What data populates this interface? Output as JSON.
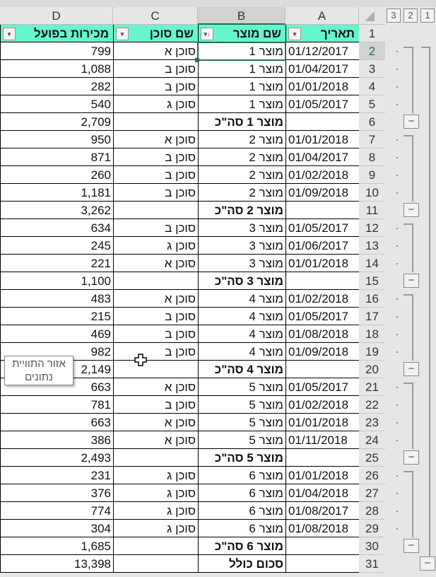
{
  "columns": [
    "D",
    "C",
    "B",
    "A"
  ],
  "outline_levels": [
    "3",
    "2",
    "1"
  ],
  "headers": {
    "A": "תאריך",
    "B": "שם מוצר",
    "C": "שם סוכן",
    "D": "מכירות בפועל"
  },
  "rows": [
    [
      "01/12/2017",
      "מוצר 1",
      "סוכן א",
      "799",
      false
    ],
    [
      "01/04/2017",
      "מוצר 1",
      "סוכן ב",
      "1,088",
      false
    ],
    [
      "01/01/2018",
      "מוצר 1",
      "סוכן ב",
      "282",
      false
    ],
    [
      "01/05/2017",
      "מוצר 1",
      "סוכן ג",
      "540",
      false
    ],
    [
      "",
      "מוצר 1 סה\"כ",
      "",
      "2,709",
      true
    ],
    [
      "01/01/2018",
      "מוצר 2",
      "סוכן א",
      "950",
      false
    ],
    [
      "01/04/2017",
      "מוצר 2",
      "סוכן ב",
      "871",
      false
    ],
    [
      "01/02/2018",
      "מוצר 2",
      "סוכן ב",
      "260",
      false
    ],
    [
      "01/09/2018",
      "מוצר 2",
      "סוכן ב",
      "1,181",
      false
    ],
    [
      "",
      "מוצר 2 סה\"כ",
      "",
      "3,262",
      true
    ],
    [
      "01/05/2017",
      "מוצר 3",
      "סוכן ב",
      "634",
      false
    ],
    [
      "01/06/2017",
      "מוצר 3",
      "סוכן ג",
      "245",
      false
    ],
    [
      "01/01/2018",
      "מוצר 3",
      "סוכן א",
      "221",
      false
    ],
    [
      "",
      "מוצר 3 סה\"כ",
      "",
      "1,100",
      true
    ],
    [
      "01/02/2018",
      "מוצר 4",
      "סוכן א",
      "483",
      false
    ],
    [
      "01/05/2017",
      "מוצר 4",
      "סוכן ב",
      "215",
      false
    ],
    [
      "01/08/2018",
      "מוצר 4",
      "סוכן ב",
      "469",
      false
    ],
    [
      "01/09/2018",
      "מוצר 4",
      "סוכן ב",
      "982",
      false
    ],
    [
      "",
      "מוצר 4 סה\"כ",
      "",
      "2,149",
      true
    ],
    [
      "01/05/2017",
      "מוצר 5",
      "סוכן א",
      "663",
      false
    ],
    [
      "01/02/2018",
      "מוצר 5",
      "סוכן ב",
      "781",
      false
    ],
    [
      "01/01/2018",
      "מוצר 5",
      "סוכן א",
      "663",
      false
    ],
    [
      "01/11/2018",
      "מוצר 5",
      "סוכן א",
      "386",
      false
    ],
    [
      "",
      "מוצר 5 סה\"כ",
      "",
      "2,493",
      true
    ],
    [
      "01/01/2018",
      "מוצר 6",
      "סוכן ג",
      "231",
      false
    ],
    [
      "01/04/2018",
      "מוצר 6",
      "סוכן ג",
      "376",
      false
    ],
    [
      "01/08/2017",
      "מוצר 6",
      "סוכן ג",
      "774",
      false
    ],
    [
      "01/08/2018",
      "מוצר 6",
      "סוכן ג",
      "304",
      false
    ],
    [
      "",
      "מוצר 6 סה\"כ",
      "",
      "1,685",
      true
    ],
    [
      "",
      "סכום כולל",
      "",
      "13,398",
      true
    ]
  ],
  "tooltip": "אזור התוויית נתונים",
  "colors": {
    "header_fill": "#66f5cf",
    "selection": "#217346"
  }
}
